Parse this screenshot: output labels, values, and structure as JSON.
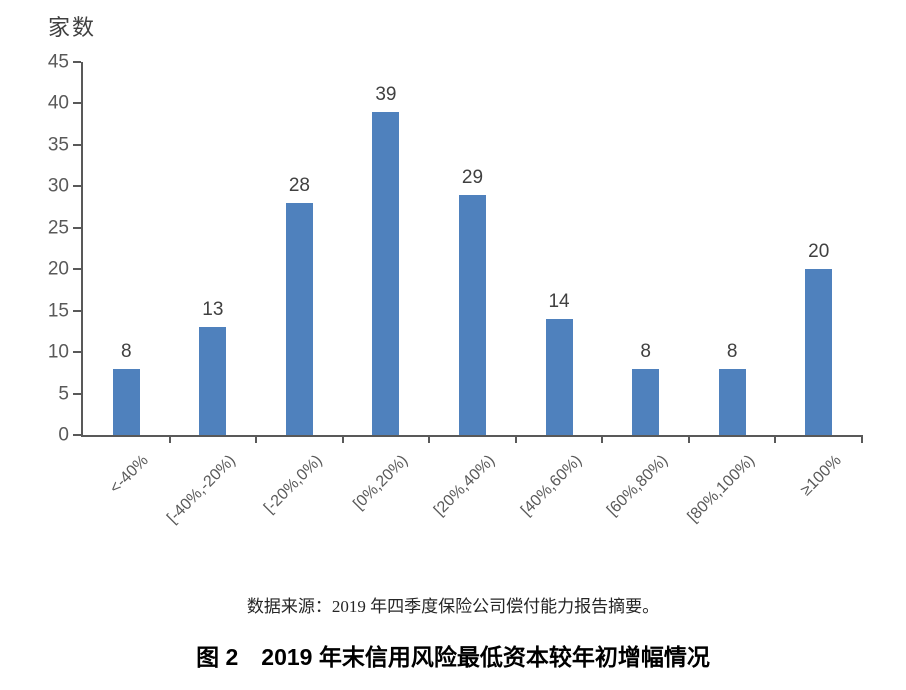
{
  "chart_data": {
    "type": "bar",
    "title": "",
    "xlabel": "",
    "ylabel": "家数",
    "categories": [
      "<-40%",
      "[-40%,-20%)",
      "[-20%,0%)",
      "[0%,20%)",
      "[20%,40%)",
      "[40%,60%)",
      "[60%,80%)",
      "[80%,100%)",
      "≥100%"
    ],
    "values": [
      8,
      13,
      28,
      39,
      29,
      14,
      8,
      8,
      20
    ],
    "ylim": [
      0,
      45
    ],
    "ytick_step": 5,
    "grid": false,
    "legend": "none",
    "data_labels": true,
    "bar_color": "#4F81BD",
    "axis_color": "#595959",
    "tick_label_color": "#595959",
    "value_label_color": "#404040"
  },
  "source_note": "数据来源：2019 年四季度保险公司偿付能力报告摘要。",
  "caption": "图 2　2019 年末信用风险最低资本较年初增幅情况"
}
